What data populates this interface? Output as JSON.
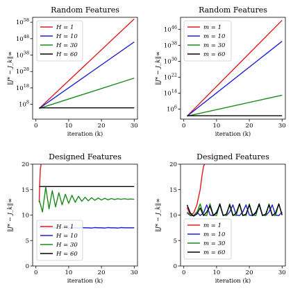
{
  "chart_data": [
    {
      "id": "rf-H",
      "type": "line",
      "title": "Random Features",
      "xlabel": "iteration (k)",
      "ylabel": "‖J* − J_k‖∞",
      "y_scale": "log",
      "xlim": [
        -1,
        31
      ],
      "ylim_log10": [
        -1,
        61
      ],
      "xticks": [
        0,
        10,
        20,
        30
      ],
      "yticks": [
        {
          "exp": 8,
          "label": "10^8"
        },
        {
          "exp": 18,
          "label": "10^18"
        },
        {
          "exp": 28,
          "label": "10^28"
        },
        {
          "exp": 38,
          "label": "10^38"
        },
        {
          "exp": 48,
          "label": "10^48"
        },
        {
          "exp": 58,
          "label": "10^58"
        }
      ],
      "legend_position": "top-left",
      "series": [
        {
          "name": "H = 1",
          "color": "#e41a1c",
          "x": [
            1,
            30
          ],
          "y_log10": [
            5.5,
            60
          ]
        },
        {
          "name": "H = 10",
          "color": "#1f1fd8",
          "x": [
            1,
            30
          ],
          "y_log10": [
            5.5,
            46
          ]
        },
        {
          "name": "H = 30",
          "color": "#1a8a1a",
          "x": [
            1,
            30
          ],
          "y_log10": [
            5.5,
            24
          ]
        },
        {
          "name": "H = 60",
          "color": "#000000",
          "x": [
            1,
            30
          ],
          "y_log10": [
            5.9,
            5.9
          ]
        }
      ]
    },
    {
      "id": "rf-m",
      "type": "line",
      "title": "Random Features",
      "xlabel": "iteration (k)",
      "ylabel": "‖J* − J_k‖∞",
      "y_scale": "log",
      "xlim": [
        -1,
        31
      ],
      "ylim_log10": [
        1,
        52
      ],
      "xticks": [
        0,
        10,
        20,
        30
      ],
      "yticks": [
        {
          "exp": 6,
          "label": "10^6"
        },
        {
          "exp": 14,
          "label": "10^14"
        },
        {
          "exp": 22,
          "label": "10^22"
        },
        {
          "exp": 30,
          "label": "10^30"
        },
        {
          "exp": 38,
          "label": "10^38"
        },
        {
          "exp": 46,
          "label": "10^46"
        }
      ],
      "legend_position": "top-left",
      "series": [
        {
          "name": "m = 1",
          "color": "#e41a1c",
          "x": [
            1,
            30
          ],
          "y_log10": [
            2.5,
            50.5
          ]
        },
        {
          "name": "m = 10",
          "color": "#1f1fd8",
          "x": [
            1,
            30
          ],
          "y_log10": [
            2.5,
            40
          ]
        },
        {
          "name": "m = 30",
          "color": "#1a8a1a",
          "x": [
            1,
            30
          ],
          "y_log10": [
            2.5,
            13
          ]
        },
        {
          "name": "m = 60",
          "color": "#000000",
          "x": [
            1,
            30
          ],
          "y_log10": [
            2.7,
            2.7
          ]
        }
      ]
    },
    {
      "id": "df-H",
      "type": "line",
      "title": "Designed Features",
      "xlabel": "iteration (k)",
      "ylabel": "‖J* − J_k‖∞",
      "xlim": [
        -1,
        31
      ],
      "ylim": [
        0,
        20
      ],
      "xticks": [
        0,
        10,
        20,
        30
      ],
      "yticks": [
        0,
        5,
        10,
        15,
        20
      ],
      "legend_position": "lower-left",
      "series": [
        {
          "name": "H = 1",
          "color": "#e41a1c",
          "x": [
            1,
            1.15,
            1.35,
            1.6
          ],
          "y": [
            12.5,
            16,
            19,
            20
          ]
        },
        {
          "name": "H = 10",
          "color": "#1f1fd8",
          "x": [
            1,
            2,
            3,
            4,
            5,
            6,
            7,
            8,
            9,
            10,
            11,
            12,
            13,
            14,
            15,
            16,
            17,
            18,
            19,
            20,
            21,
            22,
            23,
            24,
            25,
            26,
            27,
            28,
            29,
            30
          ],
          "y": [
            7.5,
            7.6,
            7.4,
            7.55,
            7.45,
            7.55,
            7.45,
            7.55,
            7.5,
            7.45,
            7.55,
            7.5,
            7.45,
            7.55,
            7.5,
            7.5,
            7.45,
            7.55,
            7.5,
            7.5,
            7.45,
            7.55,
            7.5,
            7.5,
            7.45,
            7.55,
            7.5,
            7.5,
            7.5,
            7.5
          ]
        },
        {
          "name": "H = 30",
          "color": "#1a8a1a",
          "x": [
            1,
            2,
            3,
            4,
            5,
            6,
            7,
            8,
            9,
            10,
            11,
            12,
            13,
            14,
            15,
            16,
            17,
            18,
            19,
            20,
            21,
            22,
            23,
            24,
            25,
            26,
            27,
            28,
            29,
            30
          ],
          "y": [
            13.0,
            10.6,
            15.5,
            11.2,
            14.8,
            11.6,
            14.4,
            12.0,
            14.1,
            12.3,
            13.9,
            12.5,
            13.7,
            12.7,
            13.5,
            12.8,
            13.4,
            12.9,
            13.35,
            12.95,
            13.3,
            13.0,
            13.25,
            13.05,
            13.2,
            13.1,
            13.2,
            13.1,
            13.15,
            13.1
          ]
        },
        {
          "name": "H = 60",
          "color": "#000000",
          "x": [
            1,
            30
          ],
          "y": [
            15.6,
            15.6
          ]
        }
      ]
    },
    {
      "id": "df-m",
      "type": "line",
      "title": "Designed Features",
      "xlabel": "iteration (k)",
      "ylabel": "‖J* − J_k‖∞",
      "xlim": [
        -1,
        31
      ],
      "ylim": [
        0,
        20
      ],
      "xticks": [
        0,
        10,
        20,
        30
      ],
      "yticks": [
        0,
        5,
        10,
        15,
        20
      ],
      "legend_position": "lower-left",
      "series": [
        {
          "name": "m = 1",
          "color": "#e41a1c",
          "x": [
            1,
            2,
            3,
            4,
            5,
            5.5,
            6,
            6.3
          ],
          "y": [
            11.5,
            10.0,
            10.4,
            12.0,
            15.0,
            17.5,
            19.5,
            20
          ]
        },
        {
          "name": "m = 10",
          "color": "#1f1fd8",
          "x": [
            1,
            2,
            3,
            4,
            5,
            6,
            7,
            8,
            9,
            10,
            11,
            12,
            13,
            14,
            15,
            16,
            17,
            18,
            19,
            20,
            21,
            22,
            23,
            24,
            25,
            26,
            27,
            28,
            29,
            30
          ],
          "y": [
            10.4,
            9.9,
            9.9,
            10.6,
            9.9,
            10.4,
            12.0,
            10.0,
            9.9,
            10.6,
            12.0,
            10.0,
            9.9,
            10.6,
            12.0,
            10.0,
            9.9,
            10.6,
            12.0,
            10.0,
            9.9,
            10.6,
            12.0,
            10.0,
            9.9,
            10.6,
            12.0,
            10.0,
            9.9,
            10.6
          ]
        },
        {
          "name": "m = 30",
          "color": "#1a8a1a",
          "x": [
            1,
            2,
            3,
            4,
            5,
            6,
            7,
            8,
            9,
            10,
            11,
            12,
            13,
            14,
            15,
            16,
            17,
            18,
            19,
            20,
            21,
            22,
            23,
            24,
            25,
            26,
            27,
            28,
            29,
            30
          ],
          "y": [
            10.6,
            10.0,
            9.9,
            10.5,
            12.2,
            10.0,
            9.9,
            12.2,
            10.0,
            9.9,
            12.2,
            10.0,
            9.9,
            12.2,
            10.0,
            9.9,
            12.2,
            10.0,
            9.9,
            12.2,
            10.0,
            9.9,
            12.2,
            10.0,
            9.9,
            12.2,
            10.0,
            9.9,
            12.2,
            10.0
          ]
        },
        {
          "name": "m = 60",
          "color": "#000000",
          "x": [
            1,
            2,
            3,
            4,
            5,
            6,
            7,
            8,
            9,
            10,
            11,
            12,
            13,
            14,
            15,
            16,
            17,
            18,
            19,
            20,
            21,
            22,
            23,
            24,
            25,
            26,
            27,
            28,
            29,
            30
          ],
          "y": [
            12.0,
            10.4,
            9.8,
            10.2,
            11.4,
            9.9,
            10.6,
            11.8,
            9.9,
            10.4,
            12.2,
            9.9,
            10.2,
            12.0,
            9.9,
            10.4,
            12.2,
            9.9,
            10.2,
            12.0,
            9.9,
            10.4,
            12.2,
            9.9,
            10.2,
            12.0,
            9.9,
            10.4,
            12.2,
            10.0
          ]
        }
      ]
    }
  ]
}
